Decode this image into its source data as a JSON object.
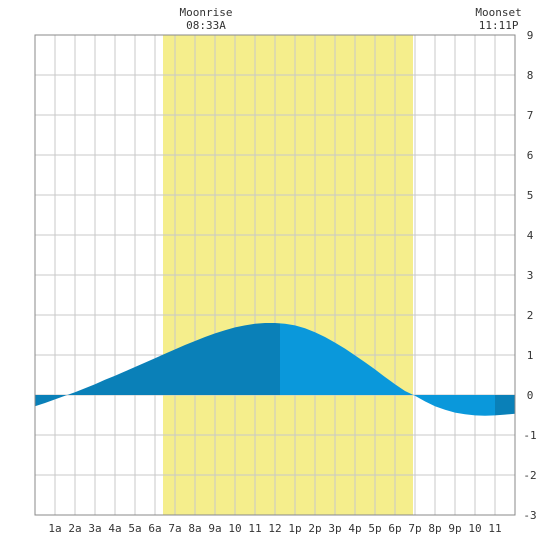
{
  "colors": {
    "background": "#ffffff",
    "daylight": "#f5ee8c",
    "grid": "#c8c8c8",
    "frame": "#888888",
    "tide_dark": "#0a80b8",
    "tide_light": "#0a98db",
    "text": "#333333"
  },
  "moon": {
    "moonrise_label": "Moonrise",
    "moonrise_time": "08:33A",
    "moonset_label": "Moonset",
    "moonset_time": "11:11P"
  },
  "chart_data": {
    "type": "area",
    "title": "",
    "xlabel": "",
    "ylabel": "",
    "xlim": [
      0,
      24
    ],
    "ylim": [
      -3,
      9
    ],
    "y_ticks": [
      "-3",
      "-2",
      "-1",
      "0",
      "1",
      "2",
      "3",
      "4",
      "5",
      "6",
      "7",
      "8",
      "9"
    ],
    "x_ticks": [
      {
        "hour": 1,
        "label": "1a"
      },
      {
        "hour": 2,
        "label": "2a"
      },
      {
        "hour": 3,
        "label": "3a"
      },
      {
        "hour": 4,
        "label": "4a"
      },
      {
        "hour": 5,
        "label": "5a"
      },
      {
        "hour": 6,
        "label": "6a"
      },
      {
        "hour": 7,
        "label": "7a"
      },
      {
        "hour": 8,
        "label": "8a"
      },
      {
        "hour": 9,
        "label": "9a"
      },
      {
        "hour": 10,
        "label": "10"
      },
      {
        "hour": 11,
        "label": "11"
      },
      {
        "hour": 12,
        "label": "12"
      },
      {
        "hour": 13,
        "label": "1p"
      },
      {
        "hour": 14,
        "label": "2p"
      },
      {
        "hour": 15,
        "label": "3p"
      },
      {
        "hour": 16,
        "label": "4p"
      },
      {
        "hour": 17,
        "label": "5p"
      },
      {
        "hour": 18,
        "label": "6p"
      },
      {
        "hour": 19,
        "label": "7p"
      },
      {
        "hour": 20,
        "label": "8p"
      },
      {
        "hour": 21,
        "label": "9p"
      },
      {
        "hour": 22,
        "label": "10"
      },
      {
        "hour": 23,
        "label": "11"
      }
    ],
    "daylight": {
      "start_hour": 6.4,
      "end_hour": 18.9
    },
    "moonrise_hour": 8.55,
    "moonset_hour": 23.18,
    "tide_segments": [
      {
        "start_hour": 0,
        "end_hour": 12.25,
        "tone": "dark"
      },
      {
        "start_hour": 12.25,
        "end_hour": 23.0,
        "tone": "light"
      },
      {
        "start_hour": 23.0,
        "end_hour": 24,
        "tone": "dark"
      }
    ],
    "series": [
      {
        "x": [
          0,
          0.5,
          1,
          1.5,
          2,
          2.5,
          3,
          3.5,
          4,
          4.5,
          5,
          5.5,
          6,
          6.5,
          7,
          7.5,
          8,
          8.5,
          9,
          9.5,
          10,
          10.5,
          11,
          11.5,
          12,
          12.5,
          13,
          13.5,
          14,
          14.5,
          15,
          15.5,
          16,
          16.5,
          17,
          17.5,
          18,
          18.5,
          19,
          19.5,
          20,
          20.5,
          21,
          21.5,
          22,
          22.5,
          23,
          23.5,
          24
        ],
        "values": [
          -0.28,
          -0.2,
          -0.11,
          -0.02,
          0.07,
          0.17,
          0.27,
          0.38,
          0.48,
          0.59,
          0.7,
          0.81,
          0.92,
          1.03,
          1.14,
          1.25,
          1.35,
          1.45,
          1.54,
          1.62,
          1.69,
          1.74,
          1.78,
          1.8,
          1.8,
          1.78,
          1.74,
          1.67,
          1.57,
          1.45,
          1.31,
          1.16,
          0.99,
          0.82,
          0.64,
          0.45,
          0.27,
          0.1,
          -0.02,
          -0.16,
          -0.28,
          -0.37,
          -0.44,
          -0.48,
          -0.51,
          -0.52,
          -0.51,
          -0.49,
          -0.47
        ]
      }
    ]
  }
}
